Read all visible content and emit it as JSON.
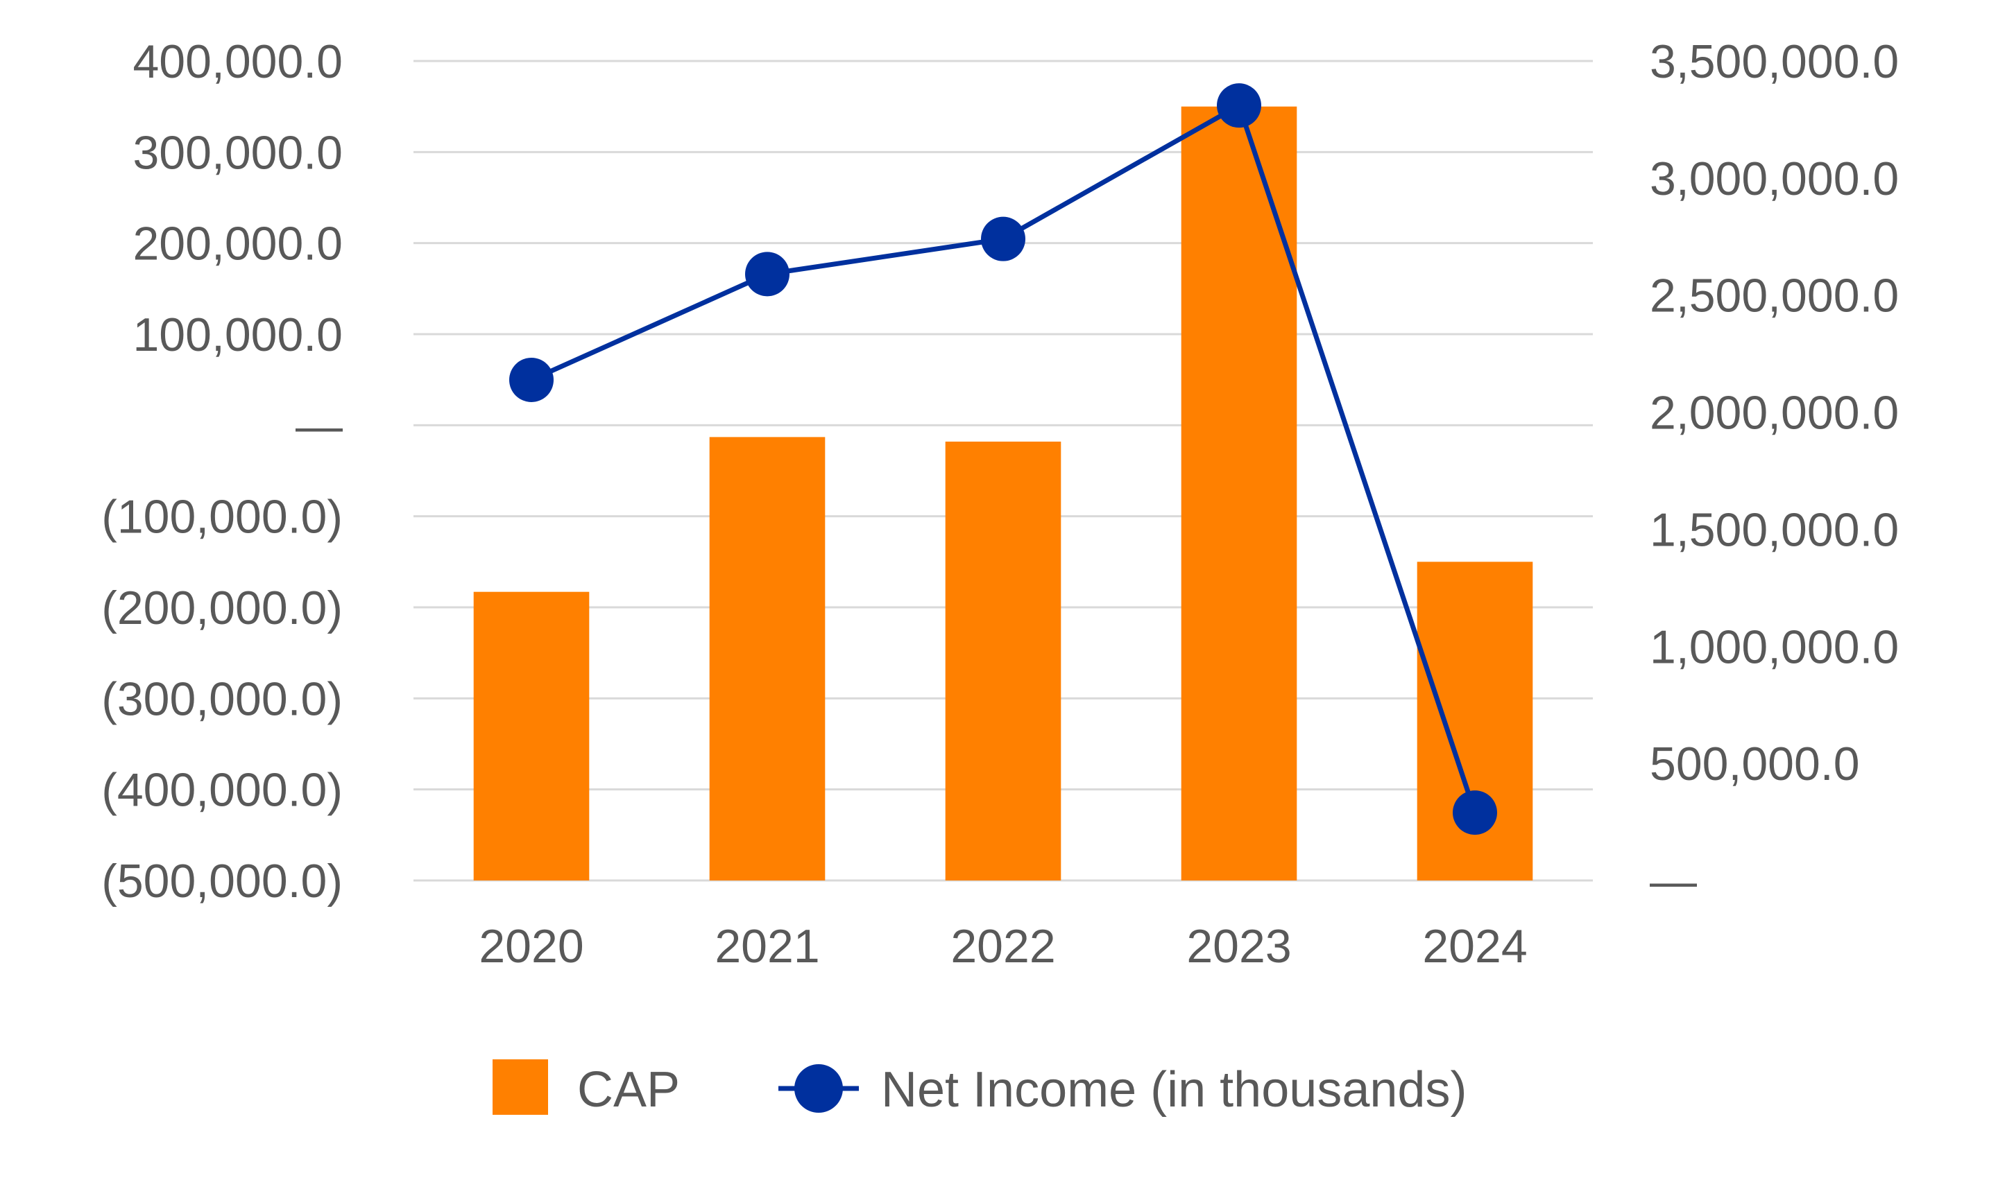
{
  "chart_data": {
    "type": "bar",
    "categories": [
      "2020",
      "2021",
      "2022",
      "2023",
      "2024"
    ],
    "series": [
      {
        "name": "CAP",
        "kind": "bar",
        "axis": "left",
        "color": "#FF8000",
        "values": [
          -183000,
          -13000,
          -18000,
          350000,
          -150000
        ]
      },
      {
        "name": "Net Income (in thousands)",
        "kind": "line",
        "axis": "right",
        "color": "#00309E",
        "values": [
          2138000,
          2590000,
          2740000,
          3310000,
          290000
        ]
      }
    ],
    "left_axis": {
      "ylim": [
        -500000,
        400000
      ],
      "ticks": [
        400000,
        300000,
        200000,
        100000,
        0,
        -100000,
        -200000,
        -300000,
        -400000,
        -500000
      ],
      "tick_labels": [
        "400,000.0",
        "300,000.0",
        "200,000.0",
        "100,000.0",
        "—",
        "(100,000.0)",
        "(200,000.0)",
        "(300,000.0)",
        "(400,000.0)",
        "(500,000.0)"
      ]
    },
    "right_axis": {
      "ylim": [
        0,
        3500000
      ],
      "ticks": [
        3500000,
        3000000,
        2500000,
        2000000,
        1500000,
        1000000,
        500000,
        0
      ],
      "tick_labels": [
        "3,500,000.0",
        "3,000,000.0",
        "2,500,000.0",
        "2,000,000.0",
        "1,500,000.0",
        "1,000,000.0",
        "500,000.0",
        "—"
      ]
    },
    "legend": {
      "position": "bottom",
      "items": [
        "CAP",
        "Net Income (in thousands)"
      ]
    },
    "grid": true,
    "title": "",
    "xlabel": "",
    "ylabel": ""
  }
}
